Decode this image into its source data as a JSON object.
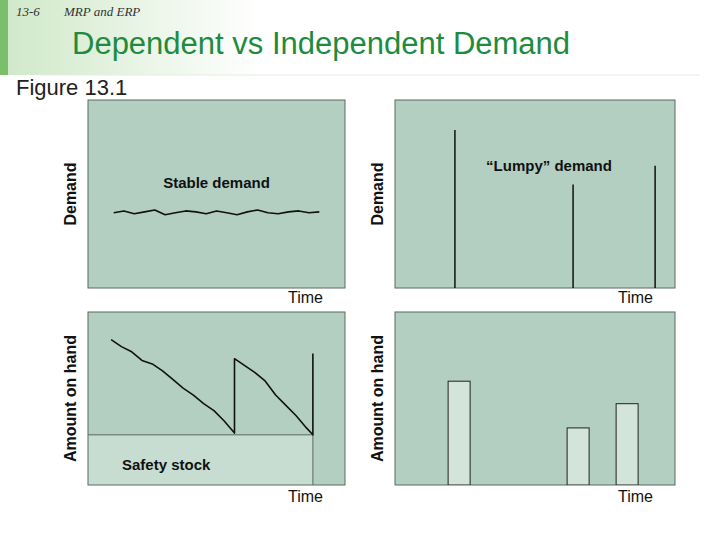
{
  "slide": {
    "page": "13-6",
    "section": "MRP and ERP",
    "title": "Dependent vs Independent Demand",
    "figure": "Figure 13.1"
  },
  "chart_data": [
    {
      "type": "line",
      "annotation": "Stable demand",
      "x_label": "Time",
      "y_label": "Demand",
      "x": [
        10,
        14,
        18,
        22,
        26,
        30,
        34,
        38,
        42,
        46,
        50,
        54,
        58,
        62,
        66,
        70,
        74,
        78,
        82,
        86,
        90
      ],
      "values": [
        40,
        41,
        39.5,
        40.5,
        41.5,
        39,
        40,
        41,
        40.5,
        39.5,
        41,
        40,
        39,
        40.5,
        41.5,
        40,
        39.5,
        40.5,
        41,
        40,
        40.5
      ],
      "xlim": [
        0,
        100
      ],
      "ylim": [
        0,
        100
      ],
      "tick_labels": false,
      "color": "#111111"
    },
    {
      "type": "spike",
      "annotation": "“Lumpy” demand",
      "x_label": "Time",
      "y_label": "Demand",
      "x": [
        21.4,
        63.6,
        92.9
      ],
      "values": [
        84,
        55,
        65
      ],
      "xlim": [
        0,
        100
      ],
      "ylim": [
        0,
        100
      ],
      "tick_labels": false,
      "color": "#111111"
    },
    {
      "type": "line",
      "x_label": "Time",
      "y_label": "Amount on hand",
      "x": [
        9,
        13,
        17,
        21,
        25,
        29,
        33,
        37,
        41,
        45,
        49,
        53,
        57,
        57,
        61,
        65,
        69,
        73,
        77,
        81,
        85,
        87.5,
        87.5
      ],
      "values": [
        84,
        80,
        77,
        72,
        70,
        66,
        61,
        56,
        52,
        47,
        43,
        37,
        30,
        73,
        69,
        65,
        60,
        52,
        46,
        40,
        33,
        29,
        76
      ],
      "safety_stock": {
        "label": "Safety stock",
        "value": 29
      },
      "xlim": [
        0,
        100
      ],
      "ylim": [
        0,
        100
      ],
      "tick_labels": false,
      "color": "#111111"
    },
    {
      "type": "bar",
      "x_label": "Time",
      "y_label": "Amount on hand",
      "x": [
        22.9,
        65.4,
        82.9
      ],
      "values": [
        60,
        33,
        47
      ],
      "xlim": [
        0,
        100
      ],
      "ylim": [
        0,
        100
      ],
      "tick_labels": false,
      "color": "#d3e4da"
    }
  ]
}
